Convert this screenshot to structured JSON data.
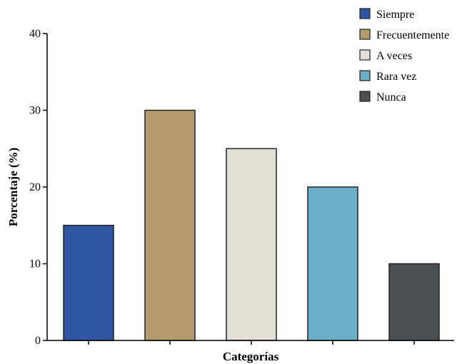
{
  "chart_data": {
    "type": "bar",
    "categories": [
      "Siempre",
      "Frecuentemente",
      "A veces",
      "Rara vez",
      "Nunca"
    ],
    "values": [
      15,
      30,
      25,
      20,
      10
    ],
    "colors": [
      "#2f55a3",
      "#b49b6e",
      "#e3dfd4",
      "#6aaec8",
      "#4b5055"
    ],
    "title": "",
    "xlabel": "Categorías",
    "ylabel": "Porcentaje (%)",
    "ylim": [
      0,
      40
    ],
    "yticks": [
      0,
      10,
      20,
      30,
      40
    ],
    "grid": false,
    "legend": {
      "position": "top-right",
      "entries": [
        "Siempre",
        "Frecuentemente",
        "A veces",
        "Rara vez",
        "Nunca"
      ]
    }
  }
}
